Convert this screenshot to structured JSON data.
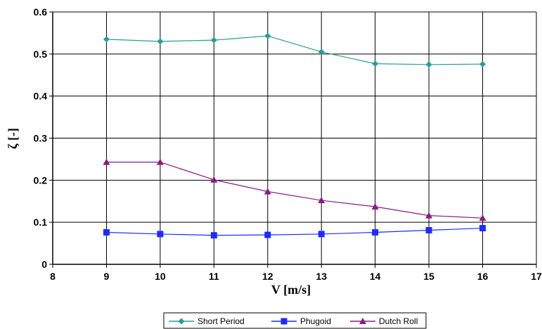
{
  "chart_data": {
    "type": "line",
    "xlabel": "V [m/s]",
    "ylabel": "ζ [-]",
    "xlim": [
      8,
      17
    ],
    "ylim": [
      0,
      0.6
    ],
    "x_ticks": [
      "8",
      "9",
      "10",
      "11",
      "12",
      "13",
      "14",
      "15",
      "16",
      "17"
    ],
    "y_ticks": [
      "0",
      "0.1",
      "0.2",
      "0.3",
      "0.4",
      "0.5",
      "0.6"
    ],
    "grid": true,
    "legend_position": "bottom",
    "x": [
      9,
      10,
      11,
      12,
      13,
      14,
      15,
      16
    ],
    "series": [
      {
        "name": "Short Period",
        "color": "#2a9d9a",
        "marker": "diamond",
        "values": [
          0.535,
          0.53,
          0.533,
          0.543,
          0.505,
          0.477,
          0.475,
          0.476
        ]
      },
      {
        "name": "Phugoid",
        "color": "#1f2bff",
        "marker": "square",
        "values": [
          0.076,
          0.072,
          0.069,
          0.07,
          0.072,
          0.076,
          0.081,
          0.086
        ]
      },
      {
        "name": "Dutch Roll",
        "color": "#8b1a86",
        "marker": "triangle",
        "values": [
          0.243,
          0.243,
          0.201,
          0.173,
          0.152,
          0.137,
          0.116,
          0.11
        ]
      }
    ]
  }
}
